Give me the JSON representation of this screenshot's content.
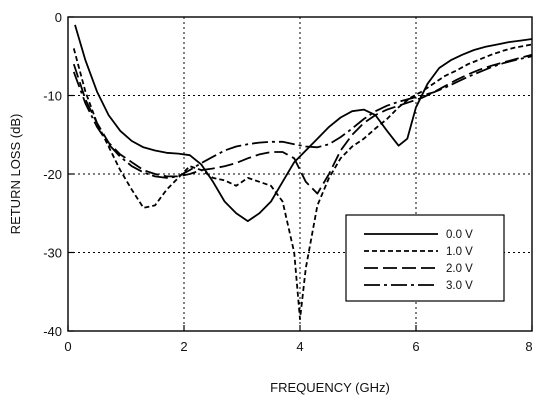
{
  "chart_data": {
    "type": "line",
    "title": "",
    "xlabel": "FREQUENCY (GHz)",
    "ylabel": "RETURN LOSS (dB)",
    "xlim": [
      0,
      8
    ],
    "ylim": [
      -40,
      0
    ],
    "xticks": [
      "0",
      "2",
      "4",
      "6",
      "8"
    ],
    "yticks": [
      "0",
      "-10",
      "-20",
      "-30",
      "-40"
    ],
    "grid": true,
    "grid_style": "dotted",
    "legend_position": "lower-right",
    "series": [
      {
        "name": "0.0 V",
        "style": "solid",
        "x": [
          0.12,
          0.3,
          0.5,
          0.7,
          0.9,
          1.1,
          1.3,
          1.5,
          1.7,
          1.9,
          2.1,
          2.3,
          2.5,
          2.7,
          2.9,
          3.1,
          3.3,
          3.5,
          3.7,
          3.9,
          4.1,
          4.3,
          4.5,
          4.7,
          4.9,
          5.1,
          5.3,
          5.5,
          5.7,
          5.85,
          6.0,
          6.2,
          6.4,
          6.6,
          6.8,
          7.0,
          7.2,
          7.4,
          7.6,
          7.8,
          8.0
        ],
        "y": [
          -1.0,
          -5.5,
          -9.5,
          -12.5,
          -14.5,
          -15.8,
          -16.6,
          -17.0,
          -17.3,
          -17.4,
          -17.6,
          -18.8,
          -21.0,
          -23.5,
          -25.0,
          -26.0,
          -25.0,
          -23.5,
          -21.0,
          -18.5,
          -17.0,
          -15.5,
          -14.0,
          -12.8,
          -12.0,
          -11.8,
          -12.5,
          -14.5,
          -16.4,
          -15.5,
          -11.5,
          -8.5,
          -6.5,
          -5.5,
          -4.8,
          -4.2,
          -3.8,
          -3.5,
          -3.2,
          -3.0,
          -2.8
        ]
      },
      {
        "name": "1.0 V",
        "style": "short-dash",
        "x": [
          0.1,
          0.3,
          0.5,
          0.7,
          0.9,
          1.1,
          1.3,
          1.5,
          1.7,
          1.9,
          2.1,
          2.3,
          2.5,
          2.7,
          2.9,
          3.1,
          3.3,
          3.5,
          3.7,
          3.9,
          4.0,
          4.1,
          4.3,
          4.5,
          4.7,
          4.9,
          5.1,
          5.3,
          5.5,
          5.7,
          5.9,
          6.1,
          6.3,
          6.5,
          6.7,
          6.9,
          7.1,
          7.3,
          7.5,
          7.7,
          8.0
        ],
        "y": [
          -4.0,
          -9.5,
          -13.5,
          -16.5,
          -19.5,
          -22.0,
          -24.3,
          -24.0,
          -22.0,
          -20.5,
          -19.0,
          -19.5,
          -20.5,
          -20.8,
          -21.5,
          -20.5,
          -21.0,
          -21.5,
          -23.5,
          -30.0,
          -38.5,
          -32.0,
          -24.0,
          -20.5,
          -18.0,
          -16.5,
          -15.5,
          -14.2,
          -13.0,
          -11.5,
          -10.3,
          -9.5,
          -8.5,
          -7.5,
          -6.8,
          -6.0,
          -5.4,
          -4.8,
          -4.3,
          -3.9,
          -3.5
        ]
      },
      {
        "name": "2.0 V",
        "style": "long-dash",
        "x": [
          0.1,
          0.3,
          0.5,
          0.7,
          0.9,
          1.1,
          1.3,
          1.5,
          1.7,
          1.9,
          2.1,
          2.3,
          2.5,
          2.7,
          2.9,
          3.1,
          3.3,
          3.5,
          3.7,
          3.9,
          4.1,
          4.3,
          4.5,
          4.7,
          4.9,
          5.1,
          5.3,
          5.5,
          5.7,
          5.9,
          6.1,
          6.3,
          6.5,
          6.7,
          6.9,
          7.1,
          7.3,
          7.5,
          7.7,
          8.0
        ],
        "y": [
          -6.0,
          -10.5,
          -13.5,
          -16.0,
          -17.5,
          -18.5,
          -19.5,
          -20.0,
          -20.3,
          -20.3,
          -20.0,
          -19.5,
          -19.3,
          -19.0,
          -18.6,
          -18.0,
          -17.5,
          -17.2,
          -17.2,
          -18.0,
          -21.0,
          -22.5,
          -20.0,
          -17.0,
          -15.0,
          -13.5,
          -12.5,
          -11.8,
          -11.3,
          -10.8,
          -10.3,
          -9.6,
          -8.8,
          -8.0,
          -7.3,
          -6.7,
          -6.2,
          -5.8,
          -5.4,
          -4.8
        ]
      },
      {
        "name": "3.0 V",
        "style": "dash-dot",
        "x": [
          0.1,
          0.3,
          0.5,
          0.7,
          0.9,
          1.1,
          1.3,
          1.5,
          1.7,
          1.9,
          2.1,
          2.3,
          2.5,
          2.7,
          2.9,
          3.1,
          3.3,
          3.5,
          3.7,
          3.9,
          4.1,
          4.3,
          4.5,
          4.7,
          4.9,
          5.1,
          5.3,
          5.5,
          5.7,
          5.9,
          6.1,
          6.3,
          6.5,
          6.7,
          6.9,
          7.1,
          7.3,
          7.5,
          7.7,
          8.0
        ],
        "y": [
          -7.0,
          -11.0,
          -14.0,
          -16.2,
          -17.8,
          -19.0,
          -19.8,
          -20.3,
          -20.5,
          -20.3,
          -19.5,
          -18.6,
          -17.8,
          -17.0,
          -16.5,
          -16.2,
          -16.0,
          -15.9,
          -15.9,
          -16.2,
          -16.5,
          -16.6,
          -16.2,
          -15.3,
          -14.2,
          -13.0,
          -12.0,
          -11.3,
          -10.8,
          -10.4,
          -10.0,
          -9.6,
          -9.0,
          -8.3,
          -7.6,
          -7.0,
          -6.4,
          -5.9,
          -5.5,
          -5.0
        ]
      }
    ]
  }
}
